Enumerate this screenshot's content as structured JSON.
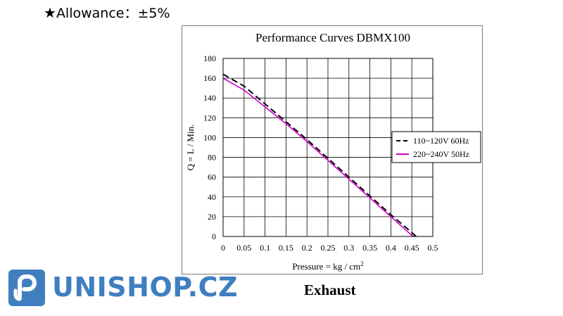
{
  "header": {
    "star": "★",
    "allowance_text": "Allowance：±5%"
  },
  "caption": "Exhaust",
  "logo": {
    "text": "UNISHOP.CZ",
    "color": "#3f7fc0"
  },
  "chart_data": {
    "type": "line",
    "title": "Performance  Curves  DBMX100",
    "xlabel": "Pressure = kg / cm",
    "xlabel_superscript": "2",
    "ylabel": "Q = L / Min.",
    "xlim": [
      0,
      0.5
    ],
    "ylim": [
      0,
      180
    ],
    "x_ticks": [
      "0",
      "0.05",
      "0.1",
      "0.15",
      "0.2",
      "0.25",
      "0.3",
      "0.35",
      "0.4",
      "0.45",
      "0.5"
    ],
    "y_ticks": [
      "0",
      "20",
      "40",
      "60",
      "80",
      "100",
      "120",
      "140",
      "160",
      "180"
    ],
    "grid": true,
    "legend_position": "right",
    "series": [
      {
        "name": "110~120V 60Hz",
        "color": "#000000",
        "dash": "dashed",
        "points": [
          [
            0,
            164
          ],
          [
            0.05,
            152
          ],
          [
            0.1,
            134
          ],
          [
            0.15,
            116
          ],
          [
            0.2,
            98
          ],
          [
            0.25,
            79
          ],
          [
            0.3,
            60
          ],
          [
            0.35,
            41
          ],
          [
            0.4,
            22
          ],
          [
            0.45,
            4
          ],
          [
            0.46,
            0
          ]
        ]
      },
      {
        "name": "220~240V 50Hz",
        "color": "#cc00cc",
        "dash": "solid",
        "points": [
          [
            0,
            160
          ],
          [
            0.05,
            148
          ],
          [
            0.1,
            131
          ],
          [
            0.15,
            114
          ],
          [
            0.2,
            96
          ],
          [
            0.25,
            77
          ],
          [
            0.3,
            58
          ],
          [
            0.35,
            39
          ],
          [
            0.4,
            20
          ],
          [
            0.45,
            1
          ],
          [
            0.455,
            0
          ]
        ]
      }
    ]
  }
}
